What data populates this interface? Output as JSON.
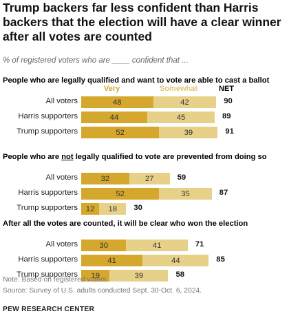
{
  "title": "Trump backers far less confident than Harris backers that the election will have a clear winner after all votes are counted",
  "subtitle": "% of registered voters who are ____ confident that ...",
  "legend": {
    "very": "Very",
    "somewhat": "Somewhat",
    "net": "NET"
  },
  "colors": {
    "very": "#d6a72d",
    "somewhat": "#e7d189",
    "very_label": "#d6a72d",
    "somewhat_label": "#e0c67a"
  },
  "chart_data": [
    {
      "type": "bar",
      "stacked": true,
      "orientation": "horizontal",
      "title_pre": "People who are legally qualified and want to vote are able to cast a ballot",
      "title_underlined": "",
      "title_post": "",
      "categories": [
        "All voters",
        "Harris supporters",
        "Trump supporters"
      ],
      "series": [
        {
          "name": "Very",
          "values": [
            48,
            44,
            52
          ]
        },
        {
          "name": "Somewhat",
          "values": [
            42,
            45,
            39
          ]
        }
      ],
      "net": [
        90,
        89,
        91
      ]
    },
    {
      "type": "bar",
      "stacked": true,
      "orientation": "horizontal",
      "title_pre": "People who are ",
      "title_underlined": "not",
      "title_post": " legally qualified to vote are prevented from doing so",
      "categories": [
        "All voters",
        "Harris supporters",
        "Trump supporters"
      ],
      "series": [
        {
          "name": "Very",
          "values": [
            32,
            52,
            12
          ]
        },
        {
          "name": "Somewhat",
          "values": [
            27,
            35,
            18
          ]
        }
      ],
      "net": [
        59,
        87,
        30
      ]
    },
    {
      "type": "bar",
      "stacked": true,
      "orientation": "horizontal",
      "title_pre": "After all the votes are counted, it will be clear who won the election",
      "title_underlined": "",
      "title_post": "",
      "categories": [
        "All voters",
        "Harris supporters",
        "Trump supporters"
      ],
      "series": [
        {
          "name": "Very",
          "values": [
            30,
            41,
            19
          ]
        },
        {
          "name": "Somewhat",
          "values": [
            41,
            44,
            39
          ]
        }
      ],
      "net": [
        71,
        85,
        58
      ]
    }
  ],
  "notes": [
    "Note: Based on registered voters.",
    "Source: Survey of U.S. adults conducted Sept. 30-Oct. 6, 2024."
  ],
  "source_org": "PEW RESEARCH CENTER"
}
